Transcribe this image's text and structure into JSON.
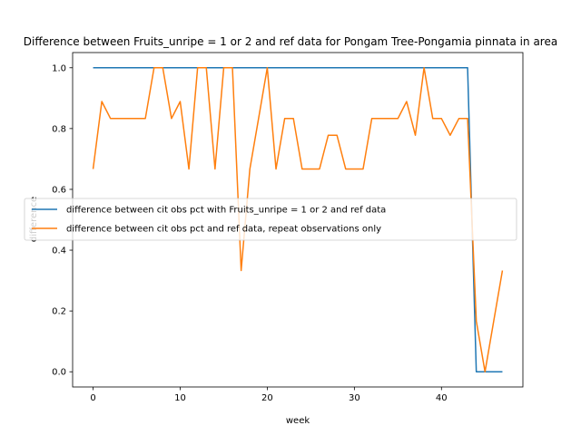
{
  "chart_data": {
    "type": "line",
    "title": "Difference between Fruits_unripe = 1 or 2 and ref data for Pongam Tree-Pongamia pinnata in area",
    "xlabel": "week",
    "ylabel": "difference",
    "xlim": [
      -2.35,
      49.35
    ],
    "ylim": [
      -0.05,
      1.05
    ],
    "xticks": [
      0,
      10,
      20,
      30,
      40
    ],
    "yticks": [
      0.0,
      0.2,
      0.4,
      0.6,
      0.8,
      1.0
    ],
    "legend_position": "center-left",
    "grid": false,
    "series": [
      {
        "name": "difference between cit obs pct with Fruits_unripe = 1 or 2 and ref data",
        "color": "#1f77b4",
        "x": [
          0,
          1,
          2,
          3,
          4,
          5,
          6,
          7,
          8,
          9,
          10,
          11,
          12,
          13,
          14,
          15,
          16,
          17,
          18,
          19,
          20,
          21,
          22,
          23,
          24,
          25,
          26,
          27,
          28,
          29,
          30,
          31,
          32,
          33,
          34,
          35,
          36,
          37,
          38,
          39,
          40,
          41,
          42,
          43,
          44,
          45,
          46,
          47
        ],
        "y": [
          1,
          1,
          1,
          1,
          1,
          1,
          1,
          1,
          1,
          1,
          1,
          1,
          1,
          1,
          1,
          1,
          1,
          1,
          1,
          1,
          1,
          1,
          1,
          1,
          1,
          1,
          1,
          1,
          1,
          1,
          1,
          1,
          1,
          1,
          1,
          1,
          1,
          1,
          1,
          1,
          1,
          1,
          1,
          1,
          0,
          0,
          0,
          0
        ]
      },
      {
        "name": "difference between cit obs pct and ref data, repeat observations only",
        "color": "#ff7f0e",
        "x": [
          0,
          1,
          2,
          3,
          4,
          5,
          6,
          7,
          8,
          9,
          10,
          11,
          12,
          13,
          14,
          15,
          16,
          17,
          18,
          19,
          20,
          21,
          22,
          23,
          24,
          25,
          26,
          27,
          28,
          29,
          30,
          31,
          32,
          33,
          34,
          35,
          36,
          37,
          38,
          39,
          40,
          41,
          42,
          43,
          44,
          45,
          46,
          47
        ],
        "y": [
          0.667,
          0.889,
          0.833,
          0.833,
          0.833,
          0.833,
          0.833,
          1.0,
          1.0,
          0.833,
          0.889,
          0.667,
          1.0,
          1.0,
          0.667,
          1.0,
          1.0,
          0.333,
          0.667,
          0.833,
          1.0,
          0.667,
          0.833,
          0.833,
          0.667,
          0.667,
          0.667,
          0.778,
          0.778,
          0.667,
          0.667,
          0.667,
          0.833,
          0.833,
          0.833,
          0.833,
          0.889,
          0.778,
          1.0,
          0.833,
          0.833,
          0.778,
          0.833,
          0.833,
          0.167,
          0.0,
          0.167,
          0.333
        ]
      }
    ]
  }
}
